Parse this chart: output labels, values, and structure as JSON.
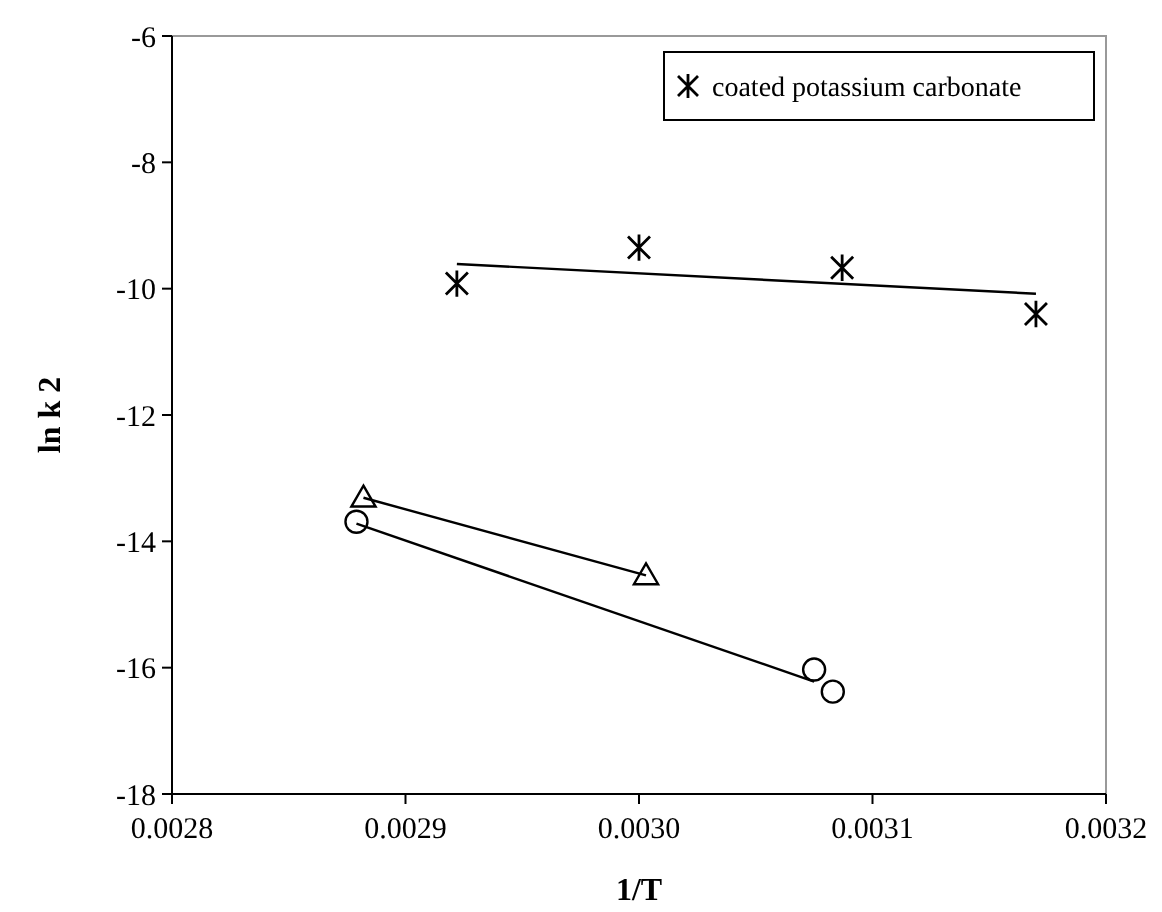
{
  "chart_data": {
    "type": "scatter",
    "xlabel": "1/T",
    "ylabel": "ln k 2",
    "xlim": [
      0.0028,
      0.0032
    ],
    "xticks": [
      0.0028,
      0.0029,
      {
        "value": 0.003,
        "label": "0.0030"
      },
      0.0031,
      0.0032
    ],
    "ylim": [
      -18,
      -6
    ],
    "yticks": [
      -18,
      -16,
      -14,
      -12,
      -10,
      -8,
      -6
    ],
    "grid": false,
    "legend": "top right",
    "line_style": "solid",
    "series": [
      {
        "name": "coated potassium carbonate",
        "color": "#000000",
        "marker": "cross",
        "x": [
          0.002922,
          0.003,
          0.003087,
          0.00317
        ],
        "values": [
          -9.92,
          -9.35,
          -9.67,
          -10.4
        ]
      },
      {
        "color": "#000000",
        "marker": "circle",
        "x": [
          0.002879,
          0.003075,
          0.003083
        ],
        "values": [
          -13.69,
          -16.03,
          -16.38
        ]
      },
      {
        "color": "#000000",
        "marker": "triangle",
        "x": [
          0.002882,
          0.003003
        ],
        "values": [
          -13.31,
          -14.54
        ]
      },
      {
        "type": "line",
        "color": "#000000",
        "marker": "none",
        "x": [
          0.002922,
          0.00317
        ],
        "values": [
          -9.61,
          -10.08
        ]
      },
      {
        "type": "line",
        "color": "#000000",
        "marker": "none",
        "x": [
          0.002879,
          0.003075
        ],
        "values": [
          -13.72,
          -16.22
        ]
      },
      {
        "type": "line",
        "color": "#000000",
        "marker": "none",
        "x": [
          0.002882,
          0.003003
        ],
        "values": [
          -13.31,
          -14.54
        ]
      }
    ]
  }
}
